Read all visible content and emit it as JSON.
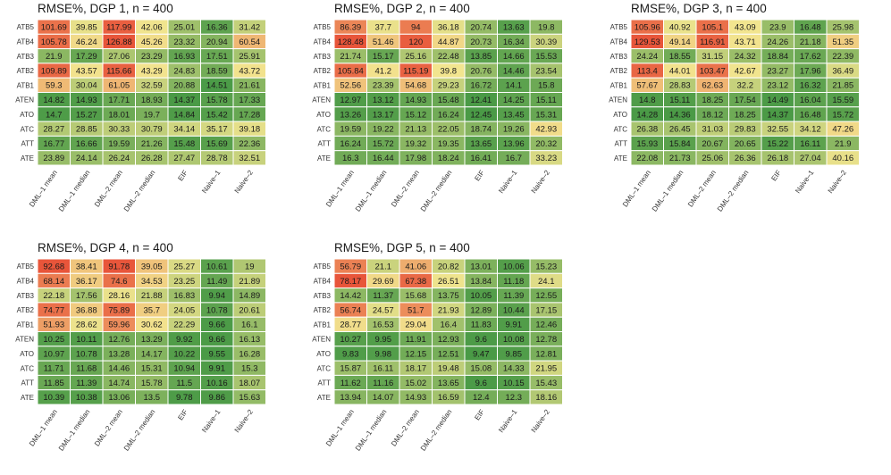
{
  "colors": {
    "low": "#4a9a46",
    "mid": "#f2e58f",
    "high": "#e8553a"
  },
  "chart_data": [
    {
      "type": "heatmap",
      "title": "RMSE%, DGP 1, n = 400",
      "rows": [
        "ATB5",
        "ATB4",
        "ATB3",
        "ATB2",
        "ATB1",
        "ATEN",
        "ATO",
        "ATC",
        "ATT",
        "ATE"
      ],
      "columns": [
        "DML–1 mean",
        "DML–1 median",
        "DML–2 mean",
        "DML–2 median",
        "EIF",
        "Naive–1",
        "Naive–2"
      ],
      "values": [
        [
          101.69,
          39.85,
          117.99,
          42.06,
          25.01,
          16.36,
          31.42
        ],
        [
          105.78,
          46.24,
          126.88,
          45.26,
          23.32,
          20.94,
          60.54
        ],
        [
          21.9,
          17.29,
          27.06,
          23.29,
          16.93,
          17.51,
          25.91
        ],
        [
          109.89,
          43.57,
          115.66,
          43.29,
          24.83,
          18.59,
          43.72
        ],
        [
          59.3,
          30.04,
          61.05,
          32.59,
          20.88,
          14.51,
          21.61
        ],
        [
          14.82,
          14.93,
          17.71,
          18.93,
          14.37,
          15.78,
          17.33
        ],
        [
          14.7,
          15.27,
          18.01,
          19.7,
          14.84,
          15.42,
          17.28
        ],
        [
          28.27,
          28.85,
          30.33,
          30.79,
          34.14,
          35.17,
          39.18
        ],
        [
          16.77,
          16.66,
          19.59,
          21.26,
          15.48,
          15.69,
          22.36
        ],
        [
          23.89,
          24.14,
          26.24,
          26.28,
          27.47,
          28.78,
          32.51
        ]
      ]
    },
    {
      "type": "heatmap",
      "title": "RMSE%, DGP 2, n = 400",
      "rows": [
        "ATB5",
        "ATB4",
        "ATB3",
        "ATB2",
        "ATB1",
        "ATEN",
        "ATO",
        "ATC",
        "ATT",
        "ATE"
      ],
      "columns": [
        "DML–1 mean",
        "DML–1 median",
        "DML–2 mean",
        "DML–2 median",
        "EIF",
        "Naive–1",
        "Naive–2"
      ],
      "values": [
        [
          86.39,
          37.7,
          94,
          36.18,
          20.74,
          13.63,
          19.8
        ],
        [
          128.48,
          51.46,
          120,
          44.87,
          20.73,
          16.34,
          30.39
        ],
        [
          21.74,
          15.17,
          25.16,
          22.48,
          13.85,
          14.66,
          15.53
        ],
        [
          105.84,
          41.2,
          115.19,
          39.8,
          20.76,
          14.46,
          23.54
        ],
        [
          52.56,
          23.39,
          54.68,
          29.23,
          16.72,
          14.1,
          15.8
        ],
        [
          12.97,
          13.12,
          14.93,
          15.48,
          12.41,
          14.25,
          15.11
        ],
        [
          13.26,
          13.17,
          15.12,
          16.24,
          12.45,
          13.45,
          15.31
        ],
        [
          19.59,
          19.22,
          21.13,
          22.05,
          18.74,
          19.26,
          42.93
        ],
        [
          16.24,
          15.72,
          19.32,
          19.35,
          13.65,
          13.96,
          20.32
        ],
        [
          16.3,
          16.44,
          17.98,
          18.24,
          16.41,
          16.7,
          33.23
        ]
      ]
    },
    {
      "type": "heatmap",
      "title": "RMSE%, DGP 3, n = 400",
      "rows": [
        "ATB5",
        "ATB4",
        "ATB3",
        "ATB2",
        "ATB1",
        "ATEN",
        "ATO",
        "ATC",
        "ATT",
        "ATE"
      ],
      "columns": [
        "DML–1 mean",
        "DML–1 median",
        "DML–2 mean",
        "DML–2 median",
        "EIF",
        "Naive–1",
        "Naive–2"
      ],
      "values": [
        [
          105.96,
          40.92,
          105.1,
          43.09,
          23.9,
          16.48,
          25.98
        ],
        [
          129.53,
          49.14,
          116.91,
          43.71,
          24.26,
          21.18,
          51.35
        ],
        [
          24.24,
          18.55,
          31.15,
          24.32,
          18.84,
          17.62,
          22.39
        ],
        [
          113.4,
          44.01,
          103.47,
          42.67,
          23.27,
          17.96,
          36.49
        ],
        [
          57.67,
          28.83,
          62.63,
          32.2,
          23.12,
          16.32,
          21.85
        ],
        [
          14.8,
          15.11,
          18.25,
          17.54,
          14.49,
          16.04,
          15.59
        ],
        [
          14.28,
          14.36,
          18.12,
          18.25,
          14.37,
          16.48,
          15.72
        ],
        [
          26.38,
          26.45,
          31.03,
          29.83,
          32.55,
          34.12,
          47.26
        ],
        [
          15.93,
          15.84,
          20.67,
          20.65,
          15.22,
          16.11,
          21.9
        ],
        [
          22.08,
          21.73,
          25.06,
          26.36,
          26.18,
          27.04,
          40.16
        ]
      ]
    },
    {
      "type": "heatmap",
      "title": "RMSE%, DGP 4, n = 400",
      "rows": [
        "ATB5",
        "ATB4",
        "ATB3",
        "ATB2",
        "ATB1",
        "ATEN",
        "ATO",
        "ATC",
        "ATT",
        "ATE"
      ],
      "columns": [
        "DML–1 mean",
        "DML–1 median",
        "DML–2 mean",
        "DML–2 median",
        "EIF",
        "Naive–1",
        "Naive–2"
      ],
      "values": [
        [
          92.68,
          38.41,
          91.78,
          39.05,
          25.27,
          10.61,
          19
        ],
        [
          68.14,
          36.17,
          74.6,
          34.53,
          23.25,
          11.49,
          21.89
        ],
        [
          22.18,
          17.56,
          28.16,
          21.88,
          16.83,
          9.94,
          14.89
        ],
        [
          74.77,
          36.88,
          75.89,
          35.7,
          24.05,
          10.78,
          20.61
        ],
        [
          51.93,
          28.62,
          59.96,
          30.62,
          22.29,
          9.66,
          16.1
        ],
        [
          10.25,
          10.11,
          12.76,
          13.29,
          9.92,
          9.66,
          16.13
        ],
        [
          10.97,
          10.78,
          13.28,
          14.17,
          10.22,
          9.55,
          16.28
        ],
        [
          11.71,
          11.68,
          14.46,
          15.31,
          10.94,
          9.91,
          15.3
        ],
        [
          11.85,
          11.39,
          14.74,
          15.78,
          11.5,
          10.16,
          18.07
        ],
        [
          10.39,
          10.38,
          13.06,
          13.5,
          9.78,
          9.86,
          15.63
        ]
      ]
    },
    {
      "type": "heatmap",
      "title": "RMSE%, DGP 5, n = 400",
      "rows": [
        "ATB5",
        "ATB4",
        "ATB3",
        "ATB2",
        "ATB1",
        "ATEN",
        "ATO",
        "ATC",
        "ATT",
        "ATE"
      ],
      "columns": [
        "DML–1 mean",
        "DML–1 median",
        "DML–2 mean",
        "DML–2 median",
        "EIF",
        "Naive–1",
        "Naive–2"
      ],
      "values": [
        [
          56.79,
          21.1,
          41.06,
          20.82,
          13.01,
          10.06,
          15.23
        ],
        [
          78.17,
          29.69,
          67.38,
          26.51,
          13.84,
          11.18,
          24.1
        ],
        [
          14.42,
          11.37,
          15.68,
          13.75,
          10.05,
          11.39,
          12.55
        ],
        [
          56.74,
          24.57,
          51.7,
          21.93,
          12.89,
          10.44,
          17.15
        ],
        [
          28.77,
          16.53,
          29.04,
          16.4,
          11.83,
          9.91,
          12.46
        ],
        [
          10.27,
          9.95,
          11.91,
          12.93,
          9.6,
          10.08,
          12.78
        ],
        [
          9.83,
          9.98,
          12.15,
          12.51,
          9.47,
          9.85,
          12.81
        ],
        [
          15.87,
          16.11,
          18.17,
          19.48,
          15.08,
          14.33,
          21.95
        ],
        [
          11.62,
          11.16,
          15.02,
          13.65,
          9.6,
          10.15,
          15.43
        ],
        [
          13.94,
          14.07,
          14.93,
          16.59,
          12.4,
          12.3,
          18.16
        ]
      ]
    }
  ]
}
